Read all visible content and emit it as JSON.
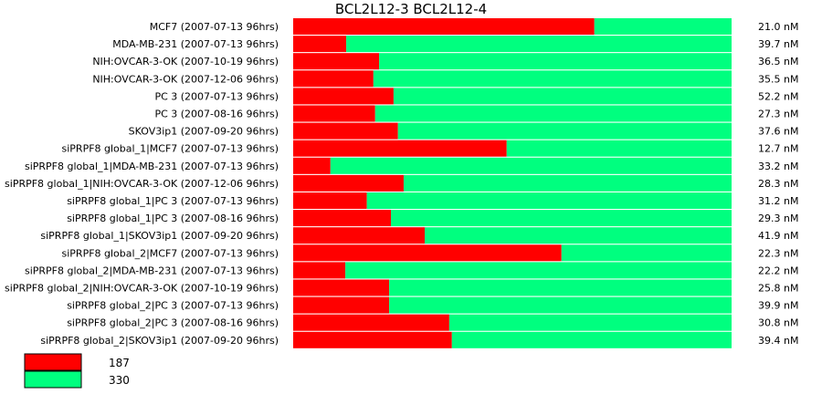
{
  "chart_data": {
    "type": "bar",
    "stacked": true,
    "orientation": "horizontal",
    "title": "BCL2L12-3  BCL2L12-4",
    "categories": [
      "MCF7 (2007-07-13 96hrs)",
      "MDA-MB-231 (2007-07-13 96hrs)",
      "NIH:OVCAR-3-OK (2007-10-19 96hrs)",
      "NIH:OVCAR-3-OK (2007-12-06 96hrs)",
      "PC 3 (2007-07-13 96hrs)",
      "PC 3 (2007-08-16 96hrs)",
      "SKOV3ip1 (2007-09-20 96hrs)",
      "siPRPF8 global_1|MCF7 (2007-07-13 96hrs)",
      "siPRPF8 global_1|MDA-MB-231 (2007-07-13 96hrs)",
      "siPRPF8 global_1|NIH:OVCAR-3-OK (2007-12-06 96hrs)",
      "siPRPF8 global_1|PC 3 (2007-07-13 96hrs)",
      "siPRPF8 global_1|PC 3 (2007-08-16 96hrs)",
      "siPRPF8 global_1|SKOV3ip1 (2007-09-20 96hrs)",
      "siPRPF8 global_2|MCF7 (2007-07-13 96hrs)",
      "siPRPF8 global_2|MDA-MB-231 (2007-07-13 96hrs)",
      "siPRPF8 global_2|NIH:OVCAR-3-OK (2007-10-19 96hrs)",
      "siPRPF8 global_2|PC 3 (2007-07-13 96hrs)",
      "siPRPF8 global_2|PC 3 (2007-08-16 96hrs)",
      "siPRPF8 global_2|SKOV3ip1 (2007-09-20 96hrs)"
    ],
    "series": [
      {
        "name": "187",
        "color": "#ff0000",
        "values": [
          0.687,
          0.121,
          0.196,
          0.183,
          0.229,
          0.187,
          0.239,
          0.487,
          0.085,
          0.252,
          0.168,
          0.223,
          0.3,
          0.612,
          0.119,
          0.219,
          0.219,
          0.356,
          0.362
        ]
      },
      {
        "name": "330",
        "color": "#00ff7f",
        "values": [
          0.313,
          0.879,
          0.804,
          0.817,
          0.771,
          0.813,
          0.761,
          0.513,
          0.915,
          0.748,
          0.832,
          0.777,
          0.7,
          0.388,
          0.881,
          0.781,
          0.781,
          0.644,
          0.638
        ]
      }
    ],
    "right_labels": [
      "21.0 nM",
      "39.7 nM",
      "36.5 nM",
      "35.5 nM",
      "52.2 nM",
      "27.3 nM",
      "37.6 nM",
      "12.7 nM",
      "33.2 nM",
      "28.3 nM",
      "31.2 nM",
      "29.3 nM",
      "41.9 nM",
      "22.3 nM",
      "22.2 nM",
      "25.8 nM",
      "39.9 nM",
      "30.8 nM",
      "39.4 nM"
    ],
    "xlim": [
      0,
      1
    ],
    "legend_position": "bottom-left",
    "grid": false
  }
}
